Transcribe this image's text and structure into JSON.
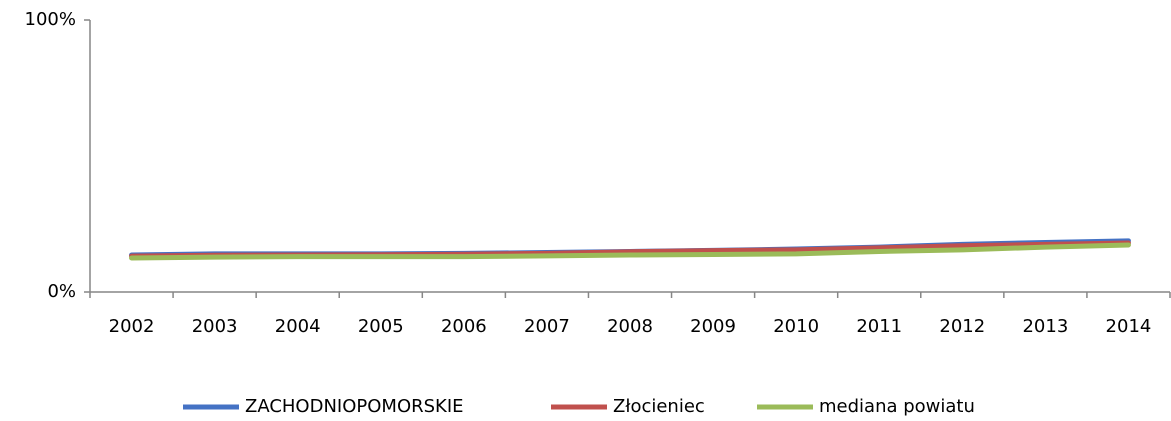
{
  "chart_data": {
    "type": "line",
    "categories": [
      "2002",
      "2003",
      "2004",
      "2005",
      "2006",
      "2007",
      "2008",
      "2009",
      "2010",
      "2011",
      "2012",
      "2013",
      "2014"
    ],
    "series": [
      {
        "name": "ZACHODNIOPOMORSKIE",
        "color": "#4472c4",
        "values": [
          13.6,
          14,
          14,
          14,
          14.2,
          14.5,
          14.9,
          15.3,
          15.8,
          16.5,
          17.5,
          18.2,
          18.8
        ]
      },
      {
        "name": "Złocieniec",
        "color": "#c0504d",
        "values": [
          13.2,
          13.5,
          13.6,
          13.7,
          13.9,
          14.2,
          14.8,
          15.2,
          15.5,
          16.2,
          17,
          17.5,
          18
        ]
      },
      {
        "name": "mediana powiatu",
        "color": "#9bbb59",
        "values": [
          12.5,
          12.8,
          13,
          13,
          13,
          13.3,
          13.6,
          13.8,
          14,
          14.9,
          15.5,
          16.5,
          17.3
        ]
      }
    ],
    "ylim": [
      0,
      100
    ],
    "yticks": [
      {
        "value": 0,
        "label": "0%"
      },
      {
        "value": 100,
        "label": "100%"
      }
    ],
    "legend": "bottom"
  }
}
